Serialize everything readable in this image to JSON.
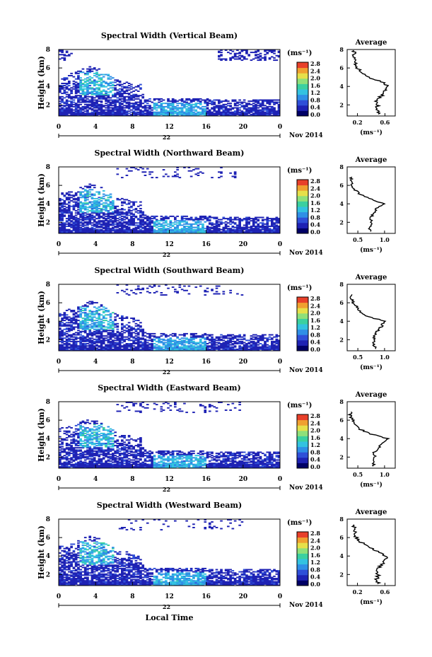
{
  "figure": {
    "x_axis_label": "Local Time",
    "date_label": "Nov 2014",
    "date_tick_label": "22",
    "colorbar_unit": "(ms⁻¹)",
    "profile_title": "Average",
    "profile_unit": "(ms⁻¹)"
  },
  "chart_data": [
    {
      "type": "heatmap",
      "title": "Spectral Width (Vertical Beam)",
      "ylabel": "Height (km)",
      "x_ticks": [
        "0",
        "4",
        "8",
        "12",
        "16",
        "20",
        "0"
      ],
      "y_ticks": [
        "2",
        "4",
        "6",
        "8"
      ],
      "xlim": [
        0,
        24
      ],
      "ylim": [
        0.8,
        8
      ],
      "colorbar_ticks": [
        "0.0",
        "0.4",
        "0.8",
        "1.2",
        "1.6",
        "2.0",
        "2.4",
        "2.8"
      ],
      "colorbar_range": [
        0,
        3.0
      ],
      "colormap": [
        "#000066",
        "#1e22b4",
        "#2f4fd8",
        "#2f8fe6",
        "#33c2e0",
        "#3bd0a0",
        "#8fe07a",
        "#e6e04a",
        "#f0a030",
        "#e8402a"
      ],
      "profile": {
        "title": "Average",
        "x_ticks": [
          "0.2",
          "0.6"
        ],
        "xlim": [
          0.05,
          0.75
        ],
        "y_ticks": [
          "2",
          "4",
          "6",
          "8"
        ],
        "ylim": [
          0.8,
          8
        ],
        "heights": [
          1.0,
          1.5,
          2.0,
          2.5,
          3.0,
          3.5,
          4.0,
          4.5,
          5.0,
          5.5,
          6.0,
          6.5,
          7.0,
          7.5
        ],
        "values": [
          0.52,
          0.48,
          0.5,
          0.47,
          0.55,
          0.58,
          0.65,
          0.55,
          0.35,
          0.28,
          0.2,
          0.18,
          0.16,
          0.15
        ]
      }
    },
    {
      "type": "heatmap",
      "title": "Spectral Width (Northward Beam)",
      "ylabel": "Height (km)",
      "x_ticks": [
        "0",
        "4",
        "8",
        "12",
        "16",
        "20",
        "0"
      ],
      "y_ticks": [
        "2",
        "4",
        "6",
        "8"
      ],
      "xlim": [
        0,
        24
      ],
      "ylim": [
        0.8,
        8
      ],
      "colorbar_ticks": [
        "0.0",
        "0.4",
        "0.8",
        "1.2",
        "1.6",
        "2.0",
        "2.4",
        "2.8"
      ],
      "colorbar_range": [
        0,
        3.0
      ],
      "colormap": [
        "#000066",
        "#1e22b4",
        "#2f4fd8",
        "#2f8fe6",
        "#33c2e0",
        "#3bd0a0",
        "#8fe07a",
        "#e6e04a",
        "#f0a030",
        "#e8402a"
      ],
      "profile": {
        "title": "Average",
        "x_ticks": [
          "0.5",
          "1.0"
        ],
        "xlim": [
          0.3,
          1.2
        ],
        "y_ticks": [
          "2",
          "4",
          "6",
          "8"
        ],
        "ylim": [
          0.8,
          8
        ],
        "heights": [
          1.0,
          1.5,
          2.0,
          2.5,
          3.0,
          3.5,
          4.0,
          4.5,
          5.0,
          5.5,
          6.0,
          6.5
        ],
        "values": [
          0.75,
          0.72,
          0.76,
          0.74,
          0.8,
          0.85,
          1.0,
          0.75,
          0.55,
          0.45,
          0.4,
          0.38
        ]
      }
    },
    {
      "type": "heatmap",
      "title": "Spectral Width (Southward Beam)",
      "ylabel": "Height (km)",
      "x_ticks": [
        "0",
        "4",
        "8",
        "12",
        "16",
        "20",
        "0"
      ],
      "y_ticks": [
        "2",
        "4",
        "6",
        "8"
      ],
      "xlim": [
        0,
        24
      ],
      "ylim": [
        0.8,
        8
      ],
      "colorbar_ticks": [
        "0.0",
        "0.4",
        "0.8",
        "1.2",
        "1.6",
        "2.0",
        "2.4",
        "2.8"
      ],
      "colorbar_range": [
        0,
        3.0
      ],
      "colormap": [
        "#000066",
        "#1e22b4",
        "#2f4fd8",
        "#2f8fe6",
        "#33c2e0",
        "#3bd0a0",
        "#8fe07a",
        "#e6e04a",
        "#f0a030",
        "#e8402a"
      ],
      "profile": {
        "title": "Average",
        "x_ticks": [
          "0.5",
          "1.0"
        ],
        "xlim": [
          0.3,
          1.2
        ],
        "y_ticks": [
          "2",
          "4",
          "6",
          "8"
        ],
        "ylim": [
          0.8,
          8
        ],
        "heights": [
          1.0,
          1.5,
          2.0,
          2.5,
          3.0,
          3.5,
          4.0,
          4.5,
          5.0,
          5.5,
          6.0,
          6.5
        ],
        "values": [
          0.85,
          0.8,
          0.82,
          0.8,
          0.88,
          0.95,
          1.0,
          0.7,
          0.55,
          0.5,
          0.42,
          0.38
        ]
      }
    },
    {
      "type": "heatmap",
      "title": "Spectral Width (Eastward Beam)",
      "ylabel": "Height (km)",
      "x_ticks": [
        "0",
        "4",
        "8",
        "12",
        "16",
        "20",
        "0"
      ],
      "y_ticks": [
        "2",
        "4",
        "6",
        "8"
      ],
      "xlim": [
        0,
        24
      ],
      "ylim": [
        0.8,
        8
      ],
      "colorbar_ticks": [
        "0.0",
        "0.4",
        "0.8",
        "1.2",
        "1.6",
        "2.0",
        "2.4",
        "2.8"
      ],
      "colorbar_range": [
        0,
        3.0
      ],
      "colormap": [
        "#000066",
        "#1e22b4",
        "#2f4fd8",
        "#2f8fe6",
        "#33c2e0",
        "#3bd0a0",
        "#8fe07a",
        "#e6e04a",
        "#f0a030",
        "#e8402a"
      ],
      "profile": {
        "title": "Average",
        "x_ticks": [
          "0.5",
          "1.0"
        ],
        "xlim": [
          0.3,
          1.2
        ],
        "y_ticks": [
          "2",
          "4",
          "6",
          "8"
        ],
        "ylim": [
          0.8,
          8
        ],
        "heights": [
          1.0,
          1.5,
          2.0,
          2.5,
          3.0,
          3.5,
          4.0,
          4.5,
          5.0,
          5.5,
          6.0,
          6.5
        ],
        "values": [
          0.8,
          0.78,
          0.82,
          0.8,
          0.9,
          0.95,
          1.05,
          0.75,
          0.55,
          0.48,
          0.4,
          0.36
        ]
      }
    },
    {
      "type": "heatmap",
      "title": "Spectral Width (Westward Beam)",
      "ylabel": "Height (km)",
      "x_ticks": [
        "0",
        "4",
        "8",
        "12",
        "16",
        "20",
        "0"
      ],
      "y_ticks": [
        "2",
        "4",
        "6",
        "8"
      ],
      "xlim": [
        0,
        24
      ],
      "ylim": [
        0.8,
        8
      ],
      "colorbar_ticks": [
        "0.0",
        "0.4",
        "0.8",
        "1.2",
        "1.6",
        "2.0",
        "2.4",
        "2.8"
      ],
      "colorbar_range": [
        0,
        3.0
      ],
      "colormap": [
        "#000066",
        "#1e22b4",
        "#2f4fd8",
        "#2f8fe6",
        "#33c2e0",
        "#3bd0a0",
        "#8fe07a",
        "#e6e04a",
        "#f0a030",
        "#e8402a"
      ],
      "profile": {
        "title": "Average",
        "x_ticks": [
          "0.2",
          "0.6"
        ],
        "xlim": [
          0.05,
          0.75
        ],
        "y_ticks": [
          "2",
          "4",
          "6",
          "8"
        ],
        "ylim": [
          0.8,
          8
        ],
        "heights": [
          1.0,
          1.5,
          2.0,
          2.5,
          3.0,
          3.5,
          4.0,
          4.5,
          5.0,
          5.5,
          6.0,
          6.5,
          7.0
        ],
        "values": [
          0.5,
          0.48,
          0.5,
          0.47,
          0.55,
          0.6,
          0.62,
          0.5,
          0.35,
          0.25,
          0.18,
          0.16,
          0.15
        ]
      }
    }
  ]
}
